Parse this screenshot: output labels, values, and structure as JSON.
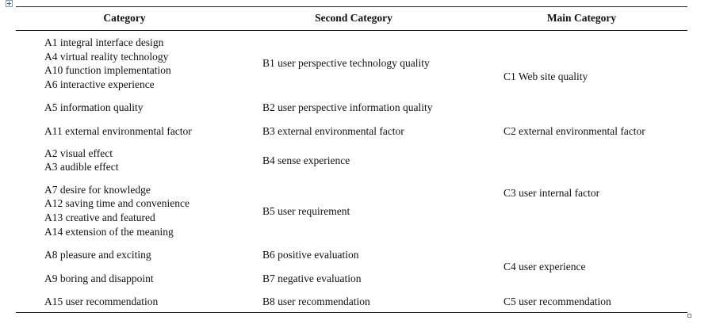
{
  "table": {
    "headers": [
      "Category",
      "Second Category",
      "Main Category"
    ],
    "category": {
      "g1": [
        "A1 integral interface design",
        "A4 virtual reality technology",
        "A10 function implementation",
        "A6 interactive experience"
      ],
      "g2": [
        "A5 information quality"
      ],
      "g3": [
        "A11 external environmental factor"
      ],
      "g4": [
        "A2 visual effect",
        "A3 audible effect"
      ],
      "g5": [
        "A7 desire for knowledge",
        "A12 saving time and convenience",
        "A13 creative and featured",
        "A14 extension of the meaning"
      ],
      "g6": [
        "A8 pleasure and exciting"
      ],
      "g7": [
        "A9 boring and disappoint"
      ],
      "g8": [
        "A15 user recommendation"
      ]
    },
    "second_category": {
      "b1": "B1 user perspective technology quality",
      "b2": "B2 user perspective information quality",
      "b3": "B3 external environmental factor",
      "b4": "B4 sense experience",
      "b5": "B5 user requirement",
      "b6": "B6 positive evaluation",
      "b7": "B7 negative evaluation",
      "b8": "B8 user recommendation"
    },
    "main_category": {
      "c1": "C1 Web site quality",
      "c2": "C2 external environmental factor",
      "c3": "C3 user internal factor",
      "c4": "C4 user experience",
      "c5": "C5 user recommendation"
    }
  }
}
